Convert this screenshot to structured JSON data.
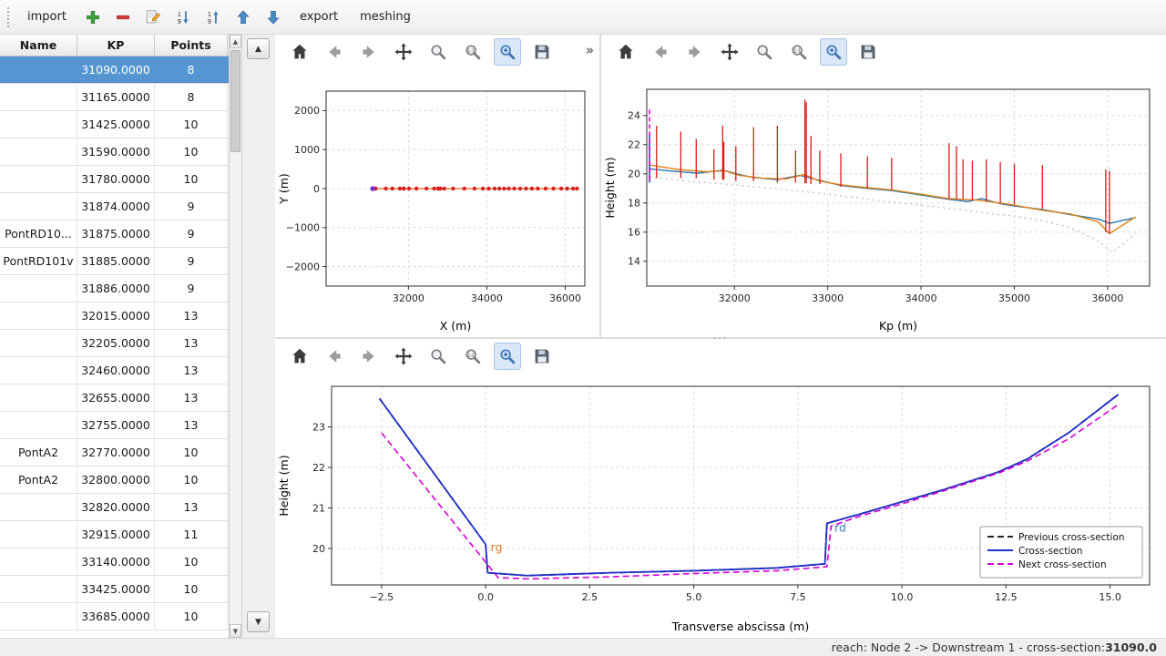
{
  "app": {
    "toolbar": {
      "import_label": "import",
      "export_label": "export",
      "meshing_label": "meshing",
      "icons": [
        "add",
        "remove",
        "edit",
        "sort-descending",
        "sort-ascending",
        "move-up",
        "move-down"
      ]
    },
    "statusbar": {
      "text": "reach: Node 2 -> Downstream 1 - cross-section: ",
      "value": "31090.0"
    }
  },
  "plot_toolbar": {
    "icons": [
      "home",
      "back",
      "forward",
      "pan",
      "zoom-fit",
      "zoom-original",
      "zoom-in",
      "save"
    ],
    "active_tool": "zoom-in",
    "overflow_label": "»"
  },
  "table": {
    "columns": [
      "Name",
      "KP",
      "Points"
    ],
    "selected_row": 0,
    "rows": [
      {
        "name": "",
        "kp": "31090.0000",
        "points": "8"
      },
      {
        "name": "",
        "kp": "31165.0000",
        "points": "8"
      },
      {
        "name": "",
        "kp": "31425.0000",
        "points": "10"
      },
      {
        "name": "",
        "kp": "31590.0000",
        "points": "10"
      },
      {
        "name": "",
        "kp": "31780.0000",
        "points": "10"
      },
      {
        "name": "",
        "kp": "31874.0000",
        "points": "9"
      },
      {
        "name": "PontRD10...",
        "kp": "31875.0000",
        "points": "9"
      },
      {
        "name": "PontRD101v",
        "kp": "31885.0000",
        "points": "9"
      },
      {
        "name": "",
        "kp": "31886.0000",
        "points": "9"
      },
      {
        "name": "",
        "kp": "32015.0000",
        "points": "13"
      },
      {
        "name": "",
        "kp": "32205.0000",
        "points": "13"
      },
      {
        "name": "",
        "kp": "32460.0000",
        "points": "13"
      },
      {
        "name": "",
        "kp": "32655.0000",
        "points": "13"
      },
      {
        "name": "",
        "kp": "32755.0000",
        "points": "13"
      },
      {
        "name": "PontA2",
        "kp": "32770.0000",
        "points": "10"
      },
      {
        "name": "PontA2",
        "kp": "32800.0000",
        "points": "10"
      },
      {
        "name": "",
        "kp": "32820.0000",
        "points": "13"
      },
      {
        "name": "",
        "kp": "32915.0000",
        "points": "11"
      },
      {
        "name": "",
        "kp": "33140.0000",
        "points": "10"
      },
      {
        "name": "",
        "kp": "33425.0000",
        "points": "10"
      },
      {
        "name": "",
        "kp": "33685.0000",
        "points": "10"
      }
    ]
  },
  "chart_data": [
    {
      "name": "plan",
      "type": "line",
      "xlabel": "X (m)",
      "ylabel": "Y (m)",
      "xlim": [
        29900,
        36500
      ],
      "ylim": [
        -2500,
        2500
      ],
      "xticks": [
        32000,
        34000,
        36000
      ],
      "xtick_labels": [
        "32000",
        "34000",
        "36000"
      ],
      "yticks": [
        2000,
        1000,
        0,
        -1000,
        -2000
      ],
      "ytick_labels": [
        "2000",
        "1000",
        "0",
        "−1000",
        "−2000"
      ],
      "series": [
        {
          "name": "river-axis",
          "color": "#e8621d",
          "width": 1.2,
          "marker": {
            "size": 2.2,
            "color": "#d42020"
          },
          "points": [
            [
              31090,
              0
            ],
            [
              31165,
              0
            ],
            [
              31425,
              0
            ],
            [
              31590,
              0
            ],
            [
              31780,
              0
            ],
            [
              31874,
              0
            ],
            [
              31886,
              0
            ],
            [
              32015,
              0
            ],
            [
              32205,
              0
            ],
            [
              32460,
              0
            ],
            [
              32655,
              0
            ],
            [
              32755,
              0
            ],
            [
              32770,
              0
            ],
            [
              32800,
              0
            ],
            [
              32820,
              0
            ],
            [
              32915,
              0
            ],
            [
              33140,
              0
            ],
            [
              33425,
              0
            ],
            [
              33685,
              0
            ],
            [
              33900,
              0
            ],
            [
              34050,
              0
            ],
            [
              34200,
              0
            ],
            [
              34320,
              0
            ],
            [
              34440,
              0
            ],
            [
              34560,
              0
            ],
            [
              34700,
              0
            ],
            [
              34850,
              0
            ],
            [
              35000,
              0
            ],
            [
              35150,
              0
            ],
            [
              35300,
              0
            ],
            [
              35500,
              0
            ],
            [
              35700,
              0
            ],
            [
              35900,
              0
            ],
            [
              36050,
              0
            ],
            [
              36200,
              0
            ],
            [
              36300,
              0
            ]
          ]
        },
        {
          "name": "current-section-marker",
          "color": "#7a2fd4",
          "width": 1,
          "marker": {
            "size": 2.8,
            "color": "#7a2fd4"
          },
          "points": [
            [
              31090,
              0
            ]
          ]
        }
      ]
    },
    {
      "name": "profile",
      "type": "line",
      "xlabel": "Kp (m)",
      "ylabel": "Height (m)",
      "xlim": [
        31060,
        36450
      ],
      "ylim": [
        12.3,
        25.8
      ],
      "xticks": [
        32000,
        33000,
        34000,
        35000,
        36000
      ],
      "xtick_labels": [
        "32000",
        "33000",
        "34000",
        "35000",
        "36000"
      ],
      "yticks": [
        14,
        16,
        18,
        20,
        22,
        24
      ],
      "ytick_labels": [
        "14",
        "16",
        "18",
        "20",
        "22",
        "24"
      ],
      "series": [
        {
          "name": "left-bank",
          "color": "#1f77b4",
          "width": 1.4,
          "points": [
            [
              31090,
              20.35
            ],
            [
              31300,
              20.2
            ],
            [
              31600,
              20.05
            ],
            [
              31880,
              20.25
            ],
            [
              32050,
              19.95
            ],
            [
              32205,
              19.75
            ],
            [
              32460,
              19.6
            ],
            [
              32700,
              19.9
            ],
            [
              32915,
              19.55
            ],
            [
              33140,
              19.2
            ],
            [
              33425,
              19.0
            ],
            [
              33685,
              18.85
            ],
            [
              34000,
              18.55
            ],
            [
              34300,
              18.25
            ],
            [
              34500,
              18.1
            ],
            [
              34650,
              18.3
            ],
            [
              34850,
              17.95
            ],
            [
              35000,
              17.8
            ],
            [
              35300,
              17.55
            ],
            [
              35600,
              17.2
            ],
            [
              35900,
              16.9
            ],
            [
              36020,
              16.6
            ],
            [
              36300,
              17.0
            ]
          ]
        },
        {
          "name": "right-bank",
          "color": "#e08214",
          "width": 1.4,
          "points": [
            [
              31090,
              20.6
            ],
            [
              31400,
              20.3
            ],
            [
              31700,
              20.15
            ],
            [
              31900,
              20.2
            ],
            [
              32050,
              19.9
            ],
            [
              32300,
              19.7
            ],
            [
              32550,
              19.65
            ],
            [
              32750,
              19.95
            ],
            [
              32915,
              19.5
            ],
            [
              33140,
              19.25
            ],
            [
              33425,
              19.05
            ],
            [
              33685,
              18.9
            ],
            [
              34000,
              18.6
            ],
            [
              34300,
              18.3
            ],
            [
              34600,
              18.2
            ],
            [
              34850,
              18.0
            ],
            [
              35000,
              17.85
            ],
            [
              35300,
              17.5
            ],
            [
              35600,
              17.25
            ],
            [
              35900,
              16.7
            ],
            [
              36020,
              15.9
            ],
            [
              36300,
              17.05
            ]
          ]
        },
        {
          "name": "thalweg",
          "color": "#c9c9c9",
          "width": 1.6,
          "dash": "2 4",
          "points": [
            [
              31090,
              19.8
            ],
            [
              31500,
              19.5
            ],
            [
              32000,
              19.25
            ],
            [
              32500,
              18.95
            ],
            [
              33000,
              18.6
            ],
            [
              33500,
              18.2
            ],
            [
              34000,
              17.85
            ],
            [
              34350,
              17.6
            ],
            [
              34700,
              17.3
            ],
            [
              35000,
              17.1
            ],
            [
              35300,
              16.8
            ],
            [
              35600,
              16.3
            ],
            [
              35900,
              15.4
            ],
            [
              36050,
              14.6
            ],
            [
              36300,
              15.9
            ]
          ]
        }
      ],
      "vline_groups": [
        {
          "name": "cross-sections",
          "color": "#e01717",
          "width": 1.3,
          "dash": "",
          "data": [
            [
              31165,
              19.7,
              23.3
            ],
            [
              31425,
              19.7,
              22.9
            ],
            [
              31590,
              19.7,
              22.4
            ],
            [
              31780,
              19.6,
              21.7
            ],
            [
              31874,
              19.6,
              23.3
            ],
            [
              31886,
              19.6,
              22.2
            ],
            [
              32015,
              19.5,
              21.9
            ],
            [
              32205,
              19.5,
              23.2
            ],
            [
              32460,
              19.4,
              23.3
            ],
            [
              32655,
              19.4,
              21.6
            ],
            [
              32755,
              19.35,
              25.1
            ],
            [
              32770,
              19.35,
              24.9
            ],
            [
              32820,
              19.3,
              22.6
            ],
            [
              32915,
              19.3,
              21.6
            ],
            [
              33140,
              19.1,
              21.4
            ],
            [
              33425,
              19.0,
              21.2
            ],
            [
              33685,
              18.9,
              21.1
            ],
            [
              34300,
              18.3,
              22.1
            ],
            [
              34380,
              18.3,
              21.9
            ],
            [
              34450,
              18.25,
              21.0
            ],
            [
              34550,
              18.2,
              20.9
            ],
            [
              34700,
              18.1,
              21.0
            ],
            [
              34850,
              18.0,
              20.8
            ],
            [
              35000,
              17.9,
              20.7
            ],
            [
              35300,
              17.6,
              20.6
            ],
            [
              35980,
              16.0,
              20.3
            ],
            [
              36020,
              15.9,
              20.2
            ]
          ]
        },
        {
          "name": "current-section-line",
          "color": "#2456c8",
          "width": 1.6,
          "dash": "",
          "data": [
            [
              31090,
              19.4,
              22.65
            ]
          ]
        },
        {
          "name": "current-section-cursor",
          "color": "#d400d4",
          "width": 1.5,
          "dash": "5 3",
          "data": [
            [
              31090,
              19.4,
              24.4
            ]
          ]
        }
      ]
    },
    {
      "name": "cross-section",
      "type": "line",
      "xlabel": "Transverse abscissa (m)",
      "ylabel": "Height (m)",
      "xlim": [
        -3.7,
        15.95
      ],
      "ylim": [
        19.1,
        24.0
      ],
      "xticks": [
        -2.5,
        0,
        2.5,
        5,
        7.5,
        10,
        12.5,
        15
      ],
      "xtick_labels": [
        "−2.5",
        "0.0",
        "2.5",
        "5.0",
        "7.5",
        "10.0",
        "12.5",
        "15.0"
      ],
      "yticks": [
        20,
        21,
        22,
        23
      ],
      "ytick_labels": [
        "20",
        "21",
        "22",
        "23"
      ],
      "series": [
        {
          "name": "previous-cross-section",
          "color": "#222222",
          "width": 1.8,
          "dash": "7 4",
          "points": [
            [
              -2.55,
              23.7
            ],
            [
              0.0,
              20.1
            ],
            [
              0.05,
              19.4
            ],
            [
              1.0,
              19.33
            ],
            [
              3.0,
              19.4
            ],
            [
              5.0,
              19.45
            ],
            [
              7.0,
              19.52
            ],
            [
              8.15,
              19.62
            ],
            [
              8.2,
              20.62
            ],
            [
              9.0,
              20.85
            ],
            [
              10.0,
              21.15
            ],
            [
              11.0,
              21.45
            ],
            [
              12.3,
              21.88
            ],
            [
              13.0,
              22.2
            ],
            [
              14.0,
              22.85
            ],
            [
              15.2,
              23.8
            ]
          ]
        },
        {
          "name": "current-cross-section",
          "color": "#2230cc",
          "width": 1.8,
          "points": [
            [
              -2.55,
              23.7
            ],
            [
              0.0,
              20.1
            ],
            [
              0.05,
              19.4
            ],
            [
              1.0,
              19.33
            ],
            [
              3.0,
              19.4
            ],
            [
              5.0,
              19.45
            ],
            [
              7.0,
              19.52
            ],
            [
              8.15,
              19.62
            ],
            [
              8.2,
              20.62
            ],
            [
              9.0,
              20.85
            ],
            [
              10.0,
              21.15
            ],
            [
              11.0,
              21.45
            ],
            [
              12.3,
              21.88
            ],
            [
              13.0,
              22.2
            ],
            [
              14.0,
              22.85
            ],
            [
              15.2,
              23.8
            ]
          ]
        },
        {
          "name": "next-cross-section",
          "color": "#d400d4",
          "width": 1.6,
          "dash": "7 4",
          "points": [
            [
              -2.5,
              22.85
            ],
            [
              0.3,
              19.28
            ],
            [
              1.0,
              19.25
            ],
            [
              3.0,
              19.3
            ],
            [
              5.0,
              19.38
            ],
            [
              7.0,
              19.45
            ],
            [
              8.2,
              19.55
            ],
            [
              8.3,
              20.55
            ],
            [
              9.0,
              20.8
            ],
            [
              10.0,
              21.1
            ],
            [
              11.0,
              21.42
            ],
            [
              12.3,
              21.85
            ],
            [
              13.0,
              22.15
            ],
            [
              14.0,
              22.7
            ],
            [
              15.2,
              23.55
            ]
          ]
        }
      ],
      "annotations": [
        {
          "x": 0.12,
          "y": 19.93,
          "text": "rg",
          "color": "#e07b28"
        },
        {
          "x": 8.38,
          "y": 20.42,
          "text": "rd",
          "color": "#3b7fc4"
        }
      ],
      "legend": {
        "entries": [
          {
            "label": "Previous cross-section",
            "color": "#222222",
            "dash": "7 4",
            "width": 2
          },
          {
            "label": "Cross-section",
            "color": "#2230cc",
            "dash": "",
            "width": 2
          },
          {
            "label": "Next cross-section",
            "color": "#d400d4",
            "dash": "7 4",
            "width": 2
          }
        ]
      }
    }
  ]
}
